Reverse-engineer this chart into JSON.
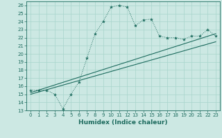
{
  "xlabel": "Humidex (Indice chaleur)",
  "bg_color": "#cce8e3",
  "line_color": "#1d6b5e",
  "grid_color": "#a8d5cc",
  "x_data": [
    0,
    1,
    2,
    3,
    4,
    5,
    6,
    7,
    8,
    9,
    10,
    11,
    12,
    13,
    14,
    15,
    16,
    17,
    18,
    19,
    20,
    21,
    22,
    23
  ],
  "y_main": [
    15.5,
    15.5,
    15.5,
    15.0,
    13.2,
    15.0,
    16.5,
    19.5,
    22.5,
    24.0,
    25.8,
    26.0,
    25.8,
    23.5,
    24.2,
    24.3,
    22.2,
    22.0,
    22.0,
    21.8,
    22.2,
    22.2,
    23.0,
    22.2
  ],
  "line1_x": [
    0,
    23
  ],
  "line1_y": [
    15.2,
    22.5
  ],
  "line2_x": [
    0,
    23
  ],
  "line2_y": [
    15.0,
    21.5
  ],
  "ylim": [
    13,
    26.5
  ],
  "xlim": [
    -0.5,
    23.5
  ],
  "yticks": [
    13,
    14,
    15,
    16,
    17,
    18,
    19,
    20,
    21,
    22,
    23,
    24,
    25,
    26
  ],
  "xticks": [
    0,
    1,
    2,
    3,
    4,
    5,
    6,
    7,
    8,
    9,
    10,
    11,
    12,
    13,
    14,
    15,
    16,
    17,
    18,
    19,
    20,
    21,
    22,
    23
  ],
  "tick_fontsize": 5.0,
  "xlabel_fontsize": 6.5
}
